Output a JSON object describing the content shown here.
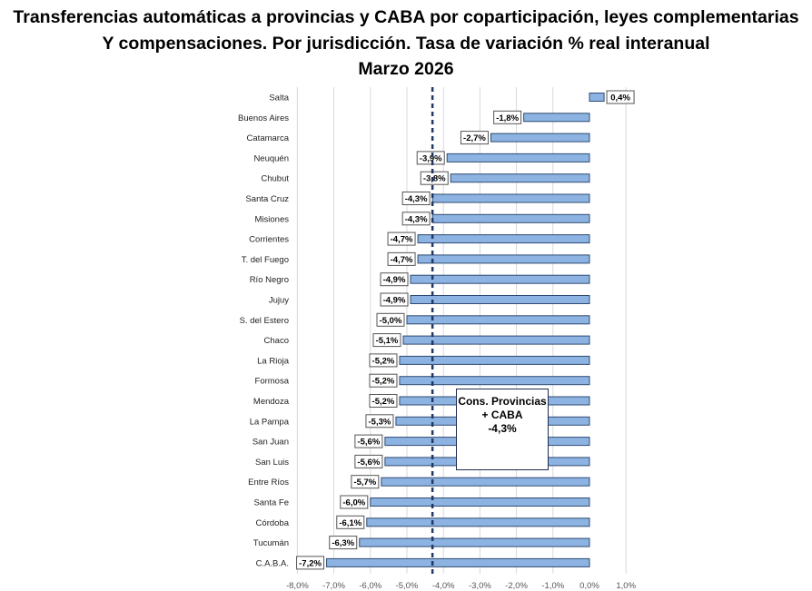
{
  "chart_data": {
    "type": "bar",
    "orientation": "horizontal",
    "title_lines": [
      "Transferencias automáticas a provincias y CABA por coparticipación, leyes complementarias",
      "Y compensaciones. Por jurisdicción. Tasa de variación % real interanual",
      "Marzo 2026"
    ],
    "categories": [
      "Salta",
      "Buenos Aires",
      "Catamarca",
      "Neuquén",
      "Chubut",
      "Santa Cruz",
      "Misiones",
      "Corrientes",
      "T. del Fuego",
      "Río Negro",
      "Jujuy",
      "S. del Estero",
      "Chaco",
      "La Rioja",
      "Formosa",
      "Mendoza",
      "La Pampa",
      "San Juan",
      "San Luis",
      "Entre Ríos",
      "Santa Fe",
      "Córdoba",
      "Tucumán",
      "C.A.B.A."
    ],
    "values": [
      0.4,
      -1.8,
      -2.7,
      -3.9,
      -3.8,
      -4.3,
      -4.3,
      -4.7,
      -4.7,
      -4.9,
      -4.9,
      -5.0,
      -5.1,
      -5.2,
      -5.2,
      -5.2,
      -5.3,
      -5.6,
      -5.6,
      -5.7,
      -6.0,
      -6.1,
      -6.3,
      -7.2
    ],
    "data_labels": [
      "0,4%",
      "-1,8%",
      "-2,7%",
      "-3,9%",
      "-3,8%",
      "-4,3%",
      "-4,3%",
      "-4,7%",
      "-4,7%",
      "-4,9%",
      "-4,9%",
      "-5,0%",
      "-5,1%",
      "-5,2%",
      "-5,2%",
      "-5,2%",
      "-5,3%",
      "-5,6%",
      "-5,6%",
      "-5,7%",
      "-6,0%",
      "-6,1%",
      "-6,3%",
      "-7,2%"
    ],
    "xlim": [
      -8,
      1
    ],
    "x_ticks": [
      -8,
      -7,
      -6,
      -5,
      -4,
      -3,
      -2,
      -1,
      0,
      1
    ],
    "x_tick_labels": [
      "-8,0%",
      "-7,0%",
      "-6,0%",
      "-5,0%",
      "-4,0%",
      "-3,0%",
      "-2,0%",
      "-1,0%",
      "0,0%",
      "1,0%"
    ],
    "grid": true,
    "reference_line": {
      "value": -4.3,
      "style": "dashed"
    },
    "annotation": {
      "line1": "Cons. Provincias",
      "line2": "+ CABA",
      "line3": "-4,3%"
    },
    "colors": {
      "bar": "#8db3e2",
      "bar_border": "#2f4b73",
      "reference": "#1f3864",
      "grid": "#d9d9d9"
    }
  }
}
